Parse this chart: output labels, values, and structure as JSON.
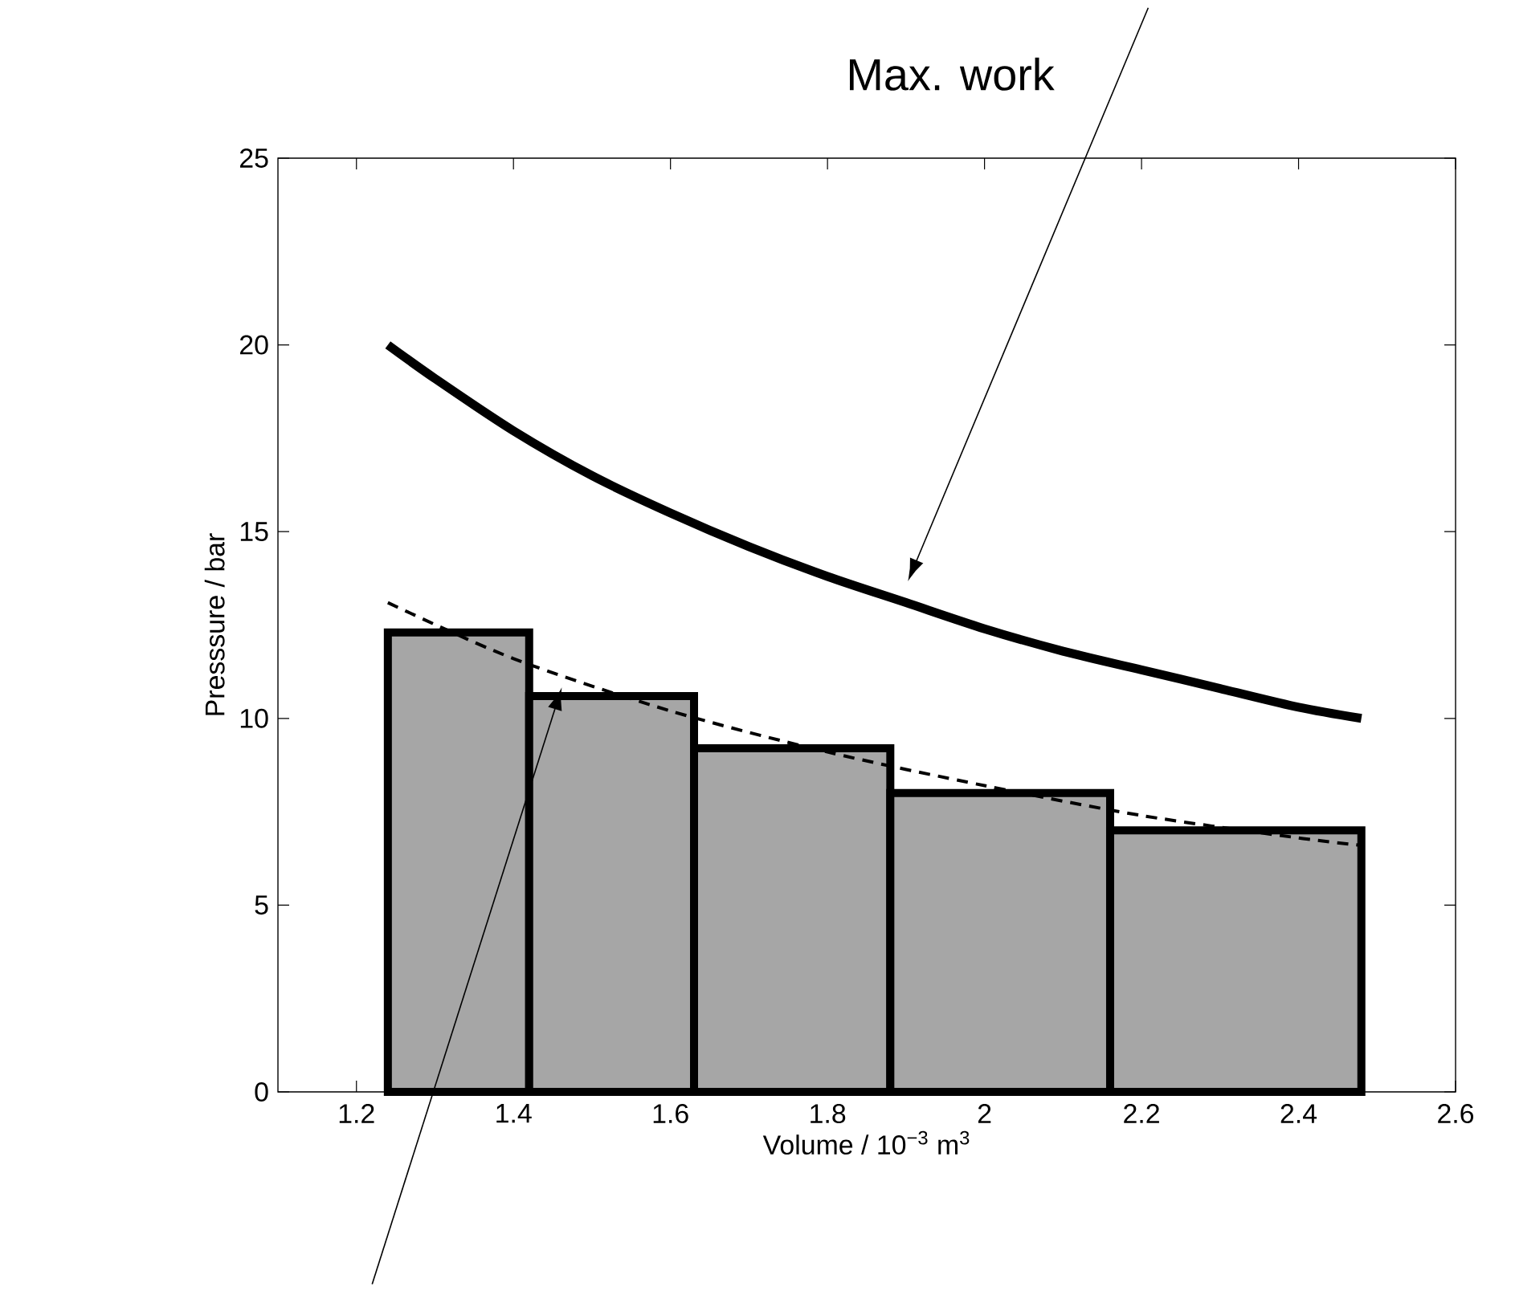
{
  "chart_data": {
    "type": "histogram",
    "xlabel": "Volume  /  10$^{−3}$ m$^{3}$",
    "ylabel": "Presssure  / bar",
    "annotations": [
      "Max. work"
    ],
    "xlim": [
      1.1,
      2.6
    ],
    "ylim": [
      0,
      25
    ],
    "xticks": [
      1.2,
      1.4,
      1.6,
      1.8,
      2,
      2.2,
      2.4,
      2.6
    ],
    "yticks": [
      0,
      5,
      10,
      15,
      20,
      25
    ],
    "grid": false,
    "series": [
      {
        "color": "#a6a6a6",
        "bins": [
          1.24,
          1.42,
          1.63,
          1.88,
          2.16,
          2.48
        ],
        "values": [
          12.3,
          10.6,
          9.2,
          8.0,
          7.0
        ]
      },
      {
        "type": "line",
        "color": "#000000",
        "line_style": "solid",
        "x": [
          1.24,
          1.3,
          1.4,
          1.5,
          1.6,
          1.7,
          1.8,
          1.9,
          2.0,
          2.1,
          2.2,
          2.3,
          2.4,
          2.48
        ],
        "values": [
          20,
          19.1,
          17.7,
          16.5,
          15.5,
          14.6,
          13.8,
          13.1,
          12.4,
          11.8,
          11.3,
          10.8,
          10.3,
          10.0
        ]
      },
      {
        "type": "line",
        "color": "#000000",
        "line_style": "dashed",
        "x": [
          1.24,
          1.4,
          1.6,
          1.8,
          2.0,
          2.2,
          2.4,
          2.48
        ],
        "values": [
          13.1,
          11.6,
          10.2,
          9.1,
          8.2,
          7.4,
          6.8,
          6.6
        ]
      }
    ]
  }
}
